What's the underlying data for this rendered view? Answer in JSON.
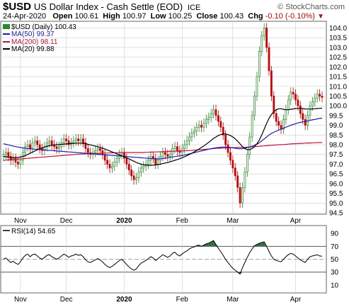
{
  "header": {
    "symbol": "$USD",
    "name": "US Dollar Index - Cash Settle (EOD)",
    "exchange": "ICE",
    "attribution": "© StockCharts.com",
    "date": "24-Apr-2020",
    "open_label": "Open",
    "open": "100.61",
    "high_label": "High",
    "high": "100.97",
    "low_label": "Low",
    "low": "100.25",
    "close_label": "Close",
    "close": "100.43",
    "chg_label": "Chg",
    "chg": "-0.10 (-0.10%)"
  },
  "legend": {
    "price": "$USD (Daily) 100.43",
    "ma50": "MA(50) 99.37",
    "ma200": "MA(200) 98.11",
    "ma20": "MA(20) 99.88",
    "rsi": "RSI(14) 54.65"
  },
  "colors": {
    "up": "#2a8a2a",
    "down": "#cc0000",
    "ma50": "#1c1cb0",
    "ma200": "#c0153a",
    "ma20": "#000000",
    "grid": "#cccccc",
    "rsi_line": "#000000",
    "rsi_fill": "#2f6b3f"
  },
  "chart_data": [
    {
      "type": "candlestick",
      "title": "$USD (Daily) 100.43",
      "ylim": [
        94.5,
        104.2
      ],
      "y_ticks": [
        "104.0",
        "103.5",
        "103.0",
        "102.5",
        "102.0",
        "101.5",
        "101.0",
        "100.5",
        "100.0",
        "99.5",
        "99.0",
        "98.5",
        "98.0",
        "97.5",
        "97.0",
        "96.5",
        "96.0",
        "95.5",
        "95.0",
        "94.5"
      ],
      "x_ticks": [
        "Nov",
        "Dec",
        "2020",
        "Feb",
        "Mar",
        "Apr"
      ],
      "bold_x_ticks": [
        "2020"
      ],
      "closes": [
        97.5,
        97.6,
        97.4,
        97.2,
        97.3,
        97.1,
        97.0,
        97.2,
        97.6,
        97.9,
        98.0,
        97.8,
        98.1,
        98.2,
        98.0,
        97.8,
        97.7,
        97.9,
        98.1,
        98.2,
        98.0,
        97.9,
        97.8,
        97.9,
        98.1,
        98.3,
        98.2,
        98.0,
        98.1,
        98.2,
        98.3,
        98.2,
        98.3,
        98.1,
        97.8,
        97.6,
        97.5,
        97.6,
        97.7,
        97.8,
        97.7,
        97.5,
        97.2,
        97.0,
        96.8,
        96.9,
        97.1,
        97.3,
        97.5,
        97.6,
        97.3,
        97.0,
        96.7,
        96.4,
        96.2,
        96.3,
        96.6,
        96.8,
        96.9,
        97.0,
        97.2,
        97.4,
        97.3,
        97.0,
        97.2,
        97.4,
        97.6,
        97.5,
        97.4,
        97.5,
        97.8,
        97.9,
        97.7,
        97.6,
        97.8,
        98.0,
        98.2,
        98.4,
        98.6,
        98.7,
        98.9,
        99.0,
        98.9,
        99.1,
        99.3,
        99.4,
        99.6,
        99.8,
        99.5,
        99.2,
        98.9,
        98.5,
        98.0,
        97.6,
        97.2,
        96.8,
        96.4,
        95.8,
        95.0,
        95.8,
        96.6,
        97.5,
        98.4,
        99.5,
        100.5,
        101.5,
        102.8,
        103.6,
        104.0,
        103.0,
        101.8,
        100.5,
        99.6,
        99.2,
        99.0,
        98.8,
        99.3,
        99.8,
        100.3,
        100.7,
        100.6,
        100.3,
        100.0,
        99.6,
        99.3,
        99.0,
        99.5,
        100.0,
        100.2,
        100.4,
        100.6,
        100.5,
        100.43
      ],
      "ma50": [
        98.05,
        98.02,
        97.99,
        97.96,
        97.93,
        97.9,
        97.88,
        97.86,
        97.84,
        97.82,
        97.8,
        97.79,
        97.78,
        97.77,
        97.76,
        97.75,
        97.74,
        97.73,
        97.72,
        97.71,
        97.7,
        97.69,
        97.68,
        97.67,
        97.66,
        97.65,
        97.64,
        97.63,
        97.62,
        97.61,
        97.6,
        97.59,
        97.58,
        97.57,
        97.56,
        97.55,
        97.54,
        97.53,
        97.52,
        97.51,
        97.5,
        97.49,
        97.48,
        97.47,
        97.46,
        97.45,
        97.44,
        97.43,
        97.42,
        97.41,
        97.4,
        97.39,
        97.38,
        97.37,
        97.36,
        97.35,
        97.34,
        97.33,
        97.32,
        97.31,
        97.3,
        97.29,
        97.28,
        97.27,
        97.27,
        97.28,
        97.29,
        97.31,
        97.33,
        97.35,
        97.37,
        97.39,
        97.41,
        97.43,
        97.45,
        97.47,
        97.5,
        97.53,
        97.56,
        97.59,
        97.62,
        97.65,
        97.68,
        97.71,
        97.74,
        97.77,
        97.8,
        97.82,
        97.84,
        97.86,
        97.87,
        97.88,
        97.88,
        97.87,
        97.86,
        97.84,
        97.82,
        97.8,
        97.79,
        97.8,
        97.82,
        97.85,
        97.88,
        97.92,
        97.97,
        98.03,
        98.1,
        98.2,
        98.3,
        98.4,
        98.5,
        98.58,
        98.64,
        98.7,
        98.75,
        98.8,
        98.85,
        98.9,
        98.95,
        99.0,
        99.04,
        99.08,
        99.12,
        99.15,
        99.18,
        99.2,
        99.22,
        99.25,
        99.28,
        99.3,
        99.33,
        99.35,
        99.37
      ],
      "ma200": [
        97.2,
        97.21,
        97.22,
        97.23,
        97.24,
        97.25,
        97.26,
        97.27,
        97.28,
        97.29,
        97.3,
        97.31,
        97.32,
        97.33,
        97.34,
        97.35,
        97.36,
        97.37,
        97.38,
        97.39,
        97.4,
        97.41,
        97.42,
        97.43,
        97.44,
        97.45,
        97.46,
        97.47,
        97.48,
        97.49,
        97.5,
        97.51,
        97.52,
        97.52,
        97.53,
        97.53,
        97.54,
        97.54,
        97.55,
        97.55,
        97.56,
        97.56,
        97.57,
        97.57,
        97.58,
        97.58,
        97.59,
        97.59,
        97.6,
        97.6,
        97.6,
        97.6,
        97.6,
        97.6,
        97.6,
        97.6,
        97.6,
        97.6,
        97.6,
        97.61,
        97.61,
        97.62,
        97.62,
        97.63,
        97.63,
        97.64,
        97.64,
        97.65,
        97.65,
        97.66,
        97.66,
        97.67,
        97.67,
        97.68,
        97.68,
        97.69,
        97.69,
        97.7,
        97.71,
        97.72,
        97.73,
        97.74,
        97.75,
        97.76,
        97.77,
        97.78,
        97.79,
        97.8,
        97.81,
        97.82,
        97.82,
        97.83,
        97.83,
        97.84,
        97.84,
        97.85,
        97.85,
        97.86,
        97.86,
        97.87,
        97.87,
        97.88,
        97.88,
        97.89,
        97.9,
        97.91,
        97.92,
        97.93,
        97.94,
        97.95,
        97.96,
        97.97,
        97.98,
        97.99,
        98.0,
        98.0,
        98.01,
        98.02,
        98.03,
        98.04,
        98.05,
        98.05,
        98.06,
        98.07,
        98.07,
        98.08,
        98.09,
        98.09,
        98.1,
        98.1,
        98.11,
        98.11,
        98.11
      ],
      "ma20": [
        97.4,
        97.38,
        97.36,
        97.35,
        97.34,
        97.34,
        97.35,
        97.37,
        97.4,
        97.44,
        97.5,
        97.56,
        97.62,
        97.68,
        97.74,
        97.79,
        97.84,
        97.88,
        97.92,
        97.95,
        97.97,
        97.99,
        98.0,
        98.01,
        98.02,
        98.03,
        98.04,
        98.05,
        98.06,
        98.07,
        98.08,
        98.08,
        98.08,
        98.07,
        98.05,
        98.02,
        97.99,
        97.96,
        97.93,
        97.9,
        97.86,
        97.82,
        97.78,
        97.73,
        97.68,
        97.63,
        97.58,
        97.53,
        97.48,
        97.43,
        97.38,
        97.33,
        97.27,
        97.21,
        97.15,
        97.09,
        97.04,
        97.0,
        96.97,
        96.95,
        96.94,
        96.94,
        96.95,
        96.96,
        96.98,
        97.0,
        97.03,
        97.06,
        97.09,
        97.12,
        97.16,
        97.2,
        97.24,
        97.28,
        97.33,
        97.38,
        97.44,
        97.5,
        97.56,
        97.63,
        97.7,
        97.78,
        97.86,
        97.94,
        98.03,
        98.12,
        98.22,
        98.32,
        98.4,
        98.47,
        98.52,
        98.55,
        98.55,
        98.52,
        98.47,
        98.4,
        98.3,
        98.18,
        98.04,
        97.9,
        97.8,
        97.75,
        97.75,
        97.8,
        97.9,
        98.05,
        98.25,
        98.5,
        98.8,
        99.1,
        99.35,
        99.55,
        99.7,
        99.8,
        99.85,
        99.85,
        99.82,
        99.8,
        99.8,
        99.82,
        99.84,
        99.86,
        99.87,
        99.87,
        99.86,
        99.84,
        99.83,
        99.83,
        99.84,
        99.85,
        99.86,
        99.87,
        99.88
      ]
    },
    {
      "type": "line",
      "title": "RSI(14) 54.65",
      "ylim": [
        0,
        100
      ],
      "y_ticks": [
        "90",
        "70",
        "50",
        "30",
        "10"
      ],
      "reference_lines": [
        70,
        50,
        30
      ],
      "x_ticks": [
        "Nov",
        "Dec",
        "2020",
        "Feb",
        "Mar",
        "Apr"
      ],
      "bold_x_ticks": [
        "2020"
      ],
      "values": [
        50,
        52,
        48,
        45,
        47,
        44,
        42,
        46,
        52,
        56,
        58,
        54,
        57,
        58,
        55,
        52,
        50,
        53,
        56,
        57,
        54,
        52,
        50,
        52,
        55,
        58,
        56,
        53,
        55,
        56,
        58,
        56,
        57,
        54,
        49,
        46,
        45,
        47,
        49,
        51,
        49,
        46,
        42,
        39,
        37,
        39,
        42,
        45,
        48,
        50,
        46,
        42,
        38,
        35,
        33,
        35,
        40,
        44,
        46,
        48,
        51,
        54,
        52,
        48,
        51,
        54,
        57,
        55,
        53,
        55,
        59,
        61,
        57,
        55,
        58,
        61,
        63,
        66,
        68,
        69,
        71,
        72,
        70,
        72,
        74,
        75,
        77,
        79,
        73,
        67,
        62,
        56,
        50,
        45,
        40,
        36,
        33,
        30,
        27,
        37,
        45,
        53,
        60,
        66,
        71,
        73,
        75,
        76,
        77,
        70,
        62,
        55,
        50,
        48,
        47,
        46,
        50,
        54,
        57,
        59,
        58,
        55,
        52,
        49,
        47,
        45,
        50,
        54,
        55,
        56,
        57,
        55,
        54.65
      ]
    }
  ]
}
